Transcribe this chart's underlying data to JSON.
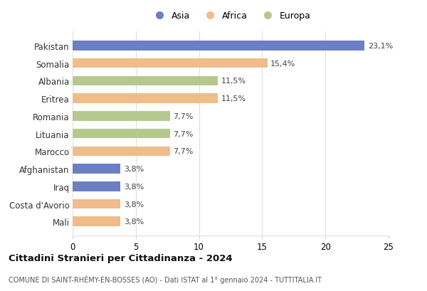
{
  "categories": [
    "Pakistan",
    "Somalia",
    "Albania",
    "Eritrea",
    "Romania",
    "Lituania",
    "Marocco",
    "Afghanistan",
    "Iraq",
    "Costa d'Avorio",
    "Mali"
  ],
  "values": [
    23.1,
    15.4,
    11.5,
    11.5,
    7.7,
    7.7,
    7.7,
    3.8,
    3.8,
    3.8,
    3.8
  ],
  "labels": [
    "23,1%",
    "15,4%",
    "11,5%",
    "11,5%",
    "7,7%",
    "7,7%",
    "7,7%",
    "3,8%",
    "3,8%",
    "3,8%",
    "3,8%"
  ],
  "colors": [
    "#6b7fc4",
    "#f0bc8a",
    "#b5c98e",
    "#f0bc8a",
    "#b5c98e",
    "#b5c98e",
    "#f0bc8a",
    "#6b7fc4",
    "#6b7fc4",
    "#f0bc8a",
    "#f0bc8a"
  ],
  "legend_labels": [
    "Asia",
    "Africa",
    "Europa"
  ],
  "legend_colors": [
    "#6b7fc4",
    "#f0bc8a",
    "#b5c98e"
  ],
  "title": "Cittadini Stranieri per Cittadinanza - 2024",
  "subtitle": "COMUNE DI SAINT-RHÉMY-EN-BOSSES (AO) - Dati ISTAT al 1° gennaio 2024 - TUTTITALIA.IT",
  "xlim": [
    0,
    25
  ],
  "xticks": [
    0,
    5,
    10,
    15,
    20,
    25
  ],
  "background_color": "#ffffff",
  "grid_color": "#e0e0e0"
}
